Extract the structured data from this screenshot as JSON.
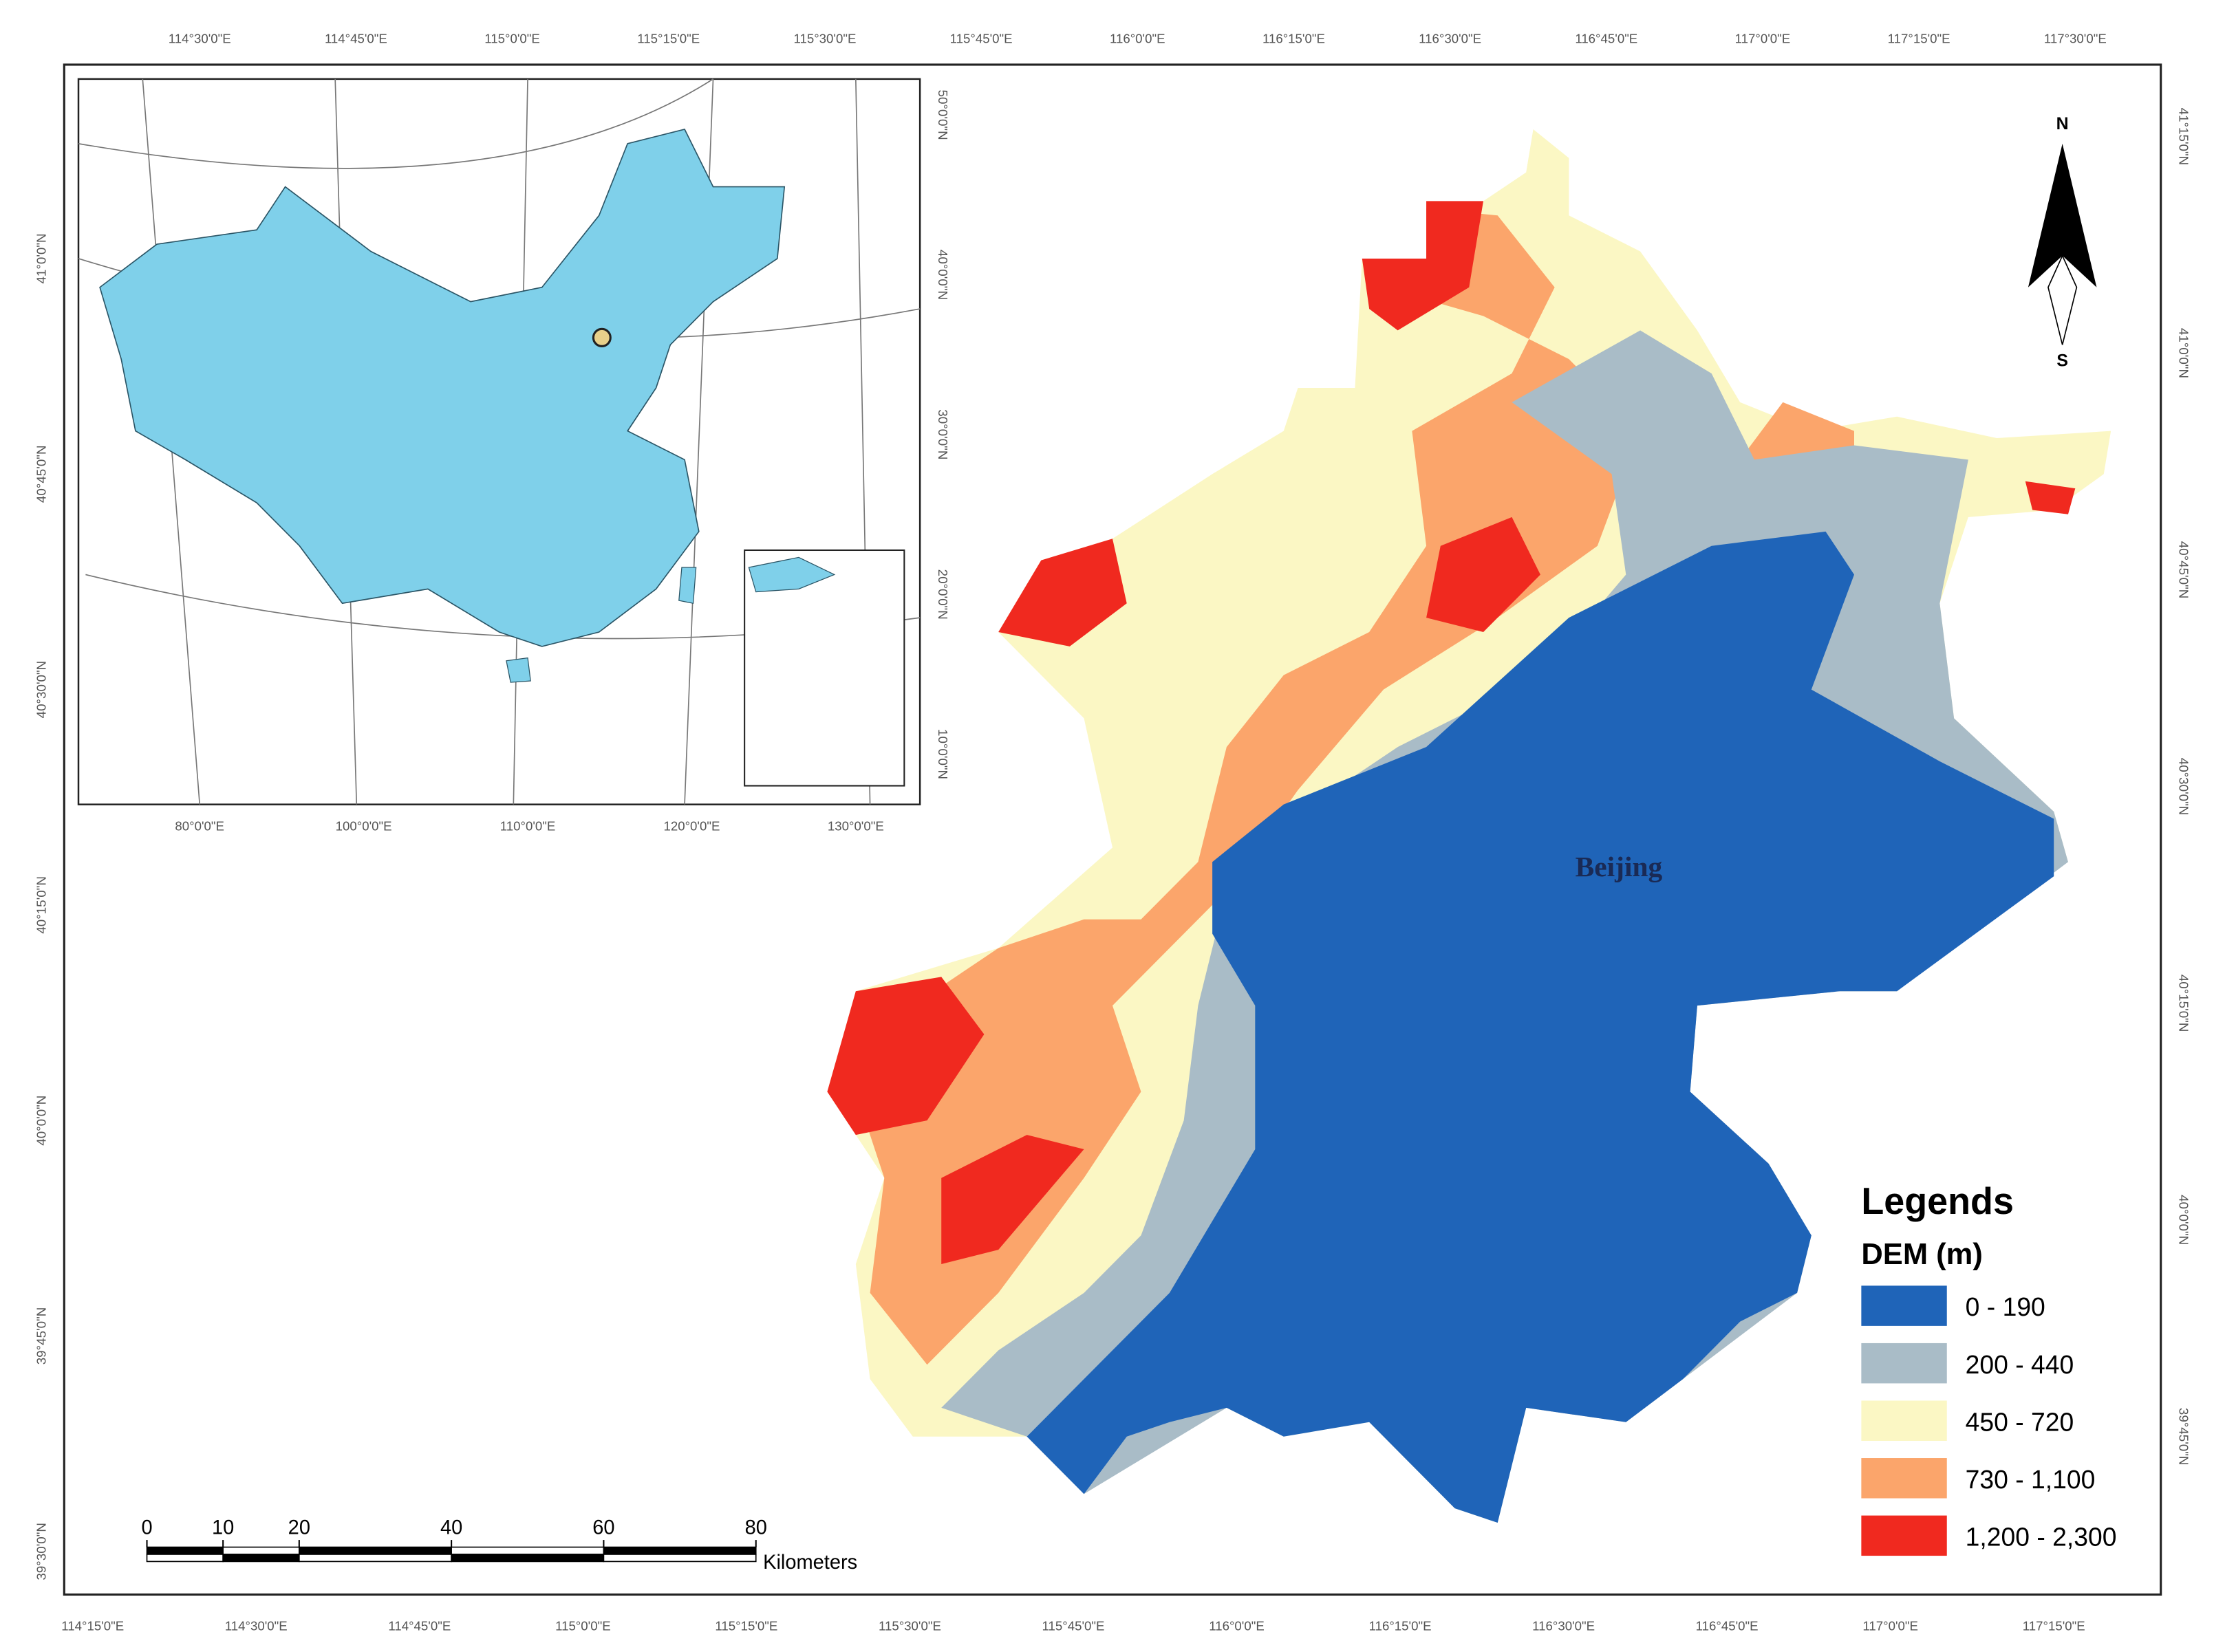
{
  "map_label": "Beijing",
  "north_arrow": {
    "north": "N",
    "south": "S"
  },
  "legend": {
    "title": "Legends",
    "subtitle": "DEM (m)",
    "classes": [
      {
        "label": "0 - 190",
        "color": "#1f64b8"
      },
      {
        "label": "200 - 440",
        "color": "#a9bcc7"
      },
      {
        "label": "450 - 720",
        "color": "#fbf7c4"
      },
      {
        "label": "730 - 1,100",
        "color": "#fba56b"
      },
      {
        "label": "1,200 - 2,300",
        "color": "#f0291f"
      }
    ]
  },
  "scale_bar": {
    "ticks": [
      0,
      10,
      20,
      40,
      60,
      80
    ],
    "unit": "Kilometers"
  },
  "frame_labels": {
    "top": [
      "114°30'0\"E",
      "114°45'0\"E",
      "115°0'0\"E",
      "115°15'0\"E",
      "115°30'0\"E",
      "115°45'0\"E",
      "116°0'0\"E",
      "116°15'0\"E",
      "116°30'0\"E",
      "116°45'0\"E",
      "117°0'0\"E",
      "117°15'0\"E",
      "117°30'0\"E"
    ],
    "bottom": [
      "114°15'0\"E",
      "114°30'0\"E",
      "114°45'0\"E",
      "115°0'0\"E",
      "115°15'0\"E",
      "115°30'0\"E",
      "115°45'0\"E",
      "116°0'0\"E",
      "116°15'0\"E",
      "116°30'0\"E",
      "116°45'0\"E",
      "117°0'0\"E",
      "117°15'0\"E"
    ],
    "left": [
      "41°0'0\"N",
      "40°45'0\"N",
      "40°30'0\"N",
      "40°15'0\"N",
      "40°0'0\"N",
      "39°45'0\"N",
      "39°30'0\"N"
    ],
    "right": [
      "41°15'0\"N",
      "41°0'0\"N",
      "40°45'0\"N",
      "40°30'0\"N",
      "40°15'0\"N",
      "40°0'0\"N",
      "39°45'0\"N"
    ]
  },
  "inset": {
    "bottom_labels": [
      "80°0'0\"E",
      "100°0'0\"E",
      "110°0'0\"E",
      "120°0'0\"E",
      "130°0'0\"E"
    ],
    "right_labels": [
      "50°0'0\"N",
      "40°0'0\"N",
      "30°0'0\"N",
      "20°0'0\"N",
      "10°0'0\"N"
    ]
  }
}
